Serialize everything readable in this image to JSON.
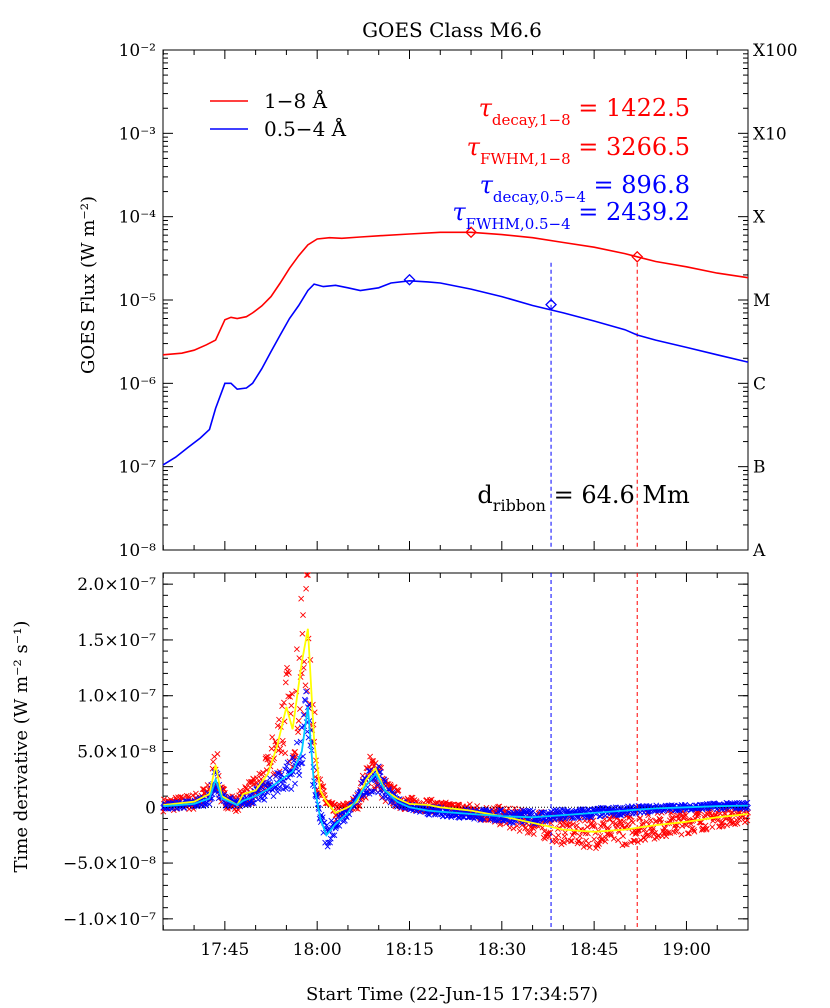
{
  "figure": {
    "title": "GOES Class M6.6",
    "xlabel": "Start Time (22-Jun-15 17:34:57)"
  },
  "chart_data": [
    {
      "type": "line",
      "panel": "top",
      "title": "GOES Class M6.6",
      "ylabel": "GOES Flux (W m⁻²)",
      "yscale": "log",
      "ylim": [
        1e-08,
        0.01
      ],
      "xlim": [
        "17:34:57",
        "19:10:00"
      ],
      "y_tick_labels": [
        "10⁻⁸",
        "10⁻⁷",
        "10⁻⁶",
        "10⁻⁵",
        "10⁻⁴",
        "10⁻³",
        "10⁻²"
      ],
      "class_labels": [
        "A",
        "B",
        "C",
        "M",
        "X",
        "X10",
        "X100"
      ],
      "legend": [
        {
          "label": "1−8 Å",
          "color": "#ff0000"
        },
        {
          "label": "0.5−4 Å",
          "color": "#0000ff"
        }
      ],
      "legend_position": "top-left",
      "annotations": [
        {
          "prefix": "τ",
          "sub": "decay,1−8",
          "value": "= 1422.5",
          "color": "#ff0000"
        },
        {
          "prefix": "τ",
          "sub": "FWHM,1−8",
          "value": "= 3266.5",
          "color": "#ff0000"
        },
        {
          "prefix": "τ",
          "sub": "decay,0.5−4",
          "value": "= 896.8",
          "color": "#0000ff"
        },
        {
          "prefix": "τ",
          "sub": "FWHM,0.5−4",
          "value": "= 2439.2",
          "color": "#0000ff"
        }
      ],
      "ribbon_label": {
        "prefix": "d",
        "sub": "ribbon",
        "value": "= 64.6 Mm"
      },
      "series": [
        {
          "name": "1−8 Å",
          "color": "#ff0000",
          "x": [
            "17:34:57",
            "17:38:00",
            "17:40:00",
            "17:42:00",
            "17:43:30",
            "17:45:00",
            "17:46:00",
            "17:47:00",
            "17:48:30",
            "17:49:30",
            "17:51:00",
            "17:52:30",
            "17:54:00",
            "17:55:30",
            "17:57:00",
            "17:58:30",
            "18:00:00",
            "18:02:00",
            "18:04:00",
            "18:07:00",
            "18:10:00",
            "18:15:00",
            "18:20:00",
            "18:25:00",
            "18:30:00",
            "18:35:00",
            "18:40:00",
            "18:45:00",
            "18:50:00",
            "18:52:00",
            "18:55:00",
            "19:00:00",
            "19:05:00",
            "19:10:00"
          ],
          "y": [
            2.2e-06,
            2.3e-06,
            2.5e-06,
            2.9e-06,
            3.3e-06,
            5.8e-06,
            6.2e-06,
            6e-06,
            6.3e-06,
            7e-06,
            8.5e-06,
            1.1e-05,
            1.6e-05,
            2.4e-05,
            3.4e-05,
            4.6e-05,
            5.4e-05,
            5.6e-05,
            5.5e-05,
            5.7e-05,
            5.9e-05,
            6.2e-05,
            6.5e-05,
            6.5e-05,
            6.1e-05,
            5.6e-05,
            4.9e-05,
            4.3e-05,
            3.6e-05,
            3.3e-05,
            2.9e-05,
            2.5e-05,
            2.1e-05,
            1.85e-05
          ]
        },
        {
          "name": "0.5−4 Å",
          "color": "#0000ff",
          "x": [
            "17:34:57",
            "17:37:00",
            "17:39:00",
            "17:41:00",
            "17:42:30",
            "17:43:30",
            "17:45:00",
            "17:46:00",
            "17:47:00",
            "17:48:30",
            "17:49:30",
            "17:51:00",
            "17:52:30",
            "17:54:00",
            "17:55:30",
            "17:57:00",
            "17:58:30",
            "17:59:30",
            "18:01:00",
            "18:03:00",
            "18:05:00",
            "18:07:00",
            "18:10:00",
            "18:12:00",
            "18:15:00",
            "18:18:00",
            "18:20:00",
            "18:25:00",
            "18:30:00",
            "18:35:00",
            "18:40:00",
            "18:45:00",
            "18:50:00",
            "18:52:00",
            "18:55:00",
            "19:00:00",
            "19:05:00",
            "19:10:00"
          ],
          "y": [
            1.05e-07,
            1.3e-07,
            1.7e-07,
            2.2e-07,
            2.8e-07,
            5e-07,
            1e-06,
            1e-06,
            8.5e-07,
            8.8e-07,
            1e-06,
            1.5e-06,
            2.4e-06,
            3.8e-06,
            6e-06,
            8.6e-06,
            1.3e-05,
            1.55e-05,
            1.45e-05,
            1.5e-05,
            1.4e-05,
            1.3e-05,
            1.4e-05,
            1.6e-05,
            1.7e-05,
            1.65e-05,
            1.6e-05,
            1.35e-05,
            1.1e-05,
            8.6e-06,
            7e-06,
            5.6e-06,
            4.4e-06,
            3.8e-06,
            3.3e-06,
            2.7e-06,
            2.2e-06,
            1.8e-06
          ]
        }
      ],
      "markers": [
        {
          "series": "0.5−4 Å",
          "x": "18:15:00",
          "y": 1.75e-05
        },
        {
          "series": "1−8 Å",
          "x": "18:25:00",
          "y": 6.5e-05
        },
        {
          "series": "0.5−4 Å",
          "x": "18:38:00",
          "y": 8.8e-06
        },
        {
          "series": "1−8 Å",
          "x": "18:52:00",
          "y": 3.3e-05
        }
      ],
      "vlines": [
        {
          "x": "18:38:00",
          "color": "#0000ff"
        },
        {
          "x": "18:52:00",
          "color": "#ff0000"
        }
      ]
    },
    {
      "type": "scatter",
      "panel": "bottom",
      "ylabel": "Time derivative (W m⁻² s⁻¹)",
      "xlabel": "Start Time (22-Jun-15 17:34:57)",
      "ylim": [
        -1.1e-07,
        2.1e-07
      ],
      "xlim": [
        "17:34:57",
        "19:10:00"
      ],
      "y_tick_labels": [
        {
          "value": 2e-07,
          "text": "2.0×10⁻⁷"
        },
        {
          "value": 1.5e-07,
          "text": "1.5×10⁻⁷"
        },
        {
          "value": 1e-07,
          "text": "1.0×10⁻⁷"
        },
        {
          "value": 5e-08,
          "text": "5.0×10⁻⁸"
        },
        {
          "value": 0,
          "text": "0"
        },
        {
          "value": -5e-08,
          "text": "−5.0×10⁻⁸"
        },
        {
          "value": -1e-07,
          "text": "−1.0×10⁻⁷"
        }
      ],
      "x_tick_labels": [
        "17:45",
        "18:00",
        "18:15",
        "18:30",
        "18:45",
        "19:00"
      ],
      "series": [
        {
          "name": "1−8 Å derivative (smoothed)",
          "color": "#ffff00",
          "x": [
            "17:35:00",
            "17:40:00",
            "17:42:30",
            "17:43:30",
            "17:44:30",
            "17:47:00",
            "17:48:00",
            "17:50:00",
            "17:52:00",
            "17:53:30",
            "17:55:00",
            "17:56:00",
            "17:57:30",
            "17:58:30",
            "17:59:30",
            "18:00:30",
            "18:01:30",
            "18:03:00",
            "18:05:00",
            "18:06:30",
            "18:08:00",
            "18:09:30",
            "18:11:00",
            "18:13:00",
            "18:15:00",
            "18:18:00",
            "18:20:00",
            "18:25:00",
            "18:30:00",
            "18:35:00",
            "18:40:00",
            "18:45:00",
            "18:50:00",
            "18:55:00",
            "19:00:00",
            "19:05:00",
            "19:10:00"
          ],
          "y": [
            2e-09,
            5e-09,
            1.2e-08,
            3.8e-08,
            1e-08,
            2e-09,
            1.2e-08,
            1.5e-08,
            3e-08,
            5.5e-08,
            9e-08,
            7e-08,
            1.3e-07,
            1.6e-07,
            6e-08,
            1.5e-08,
            5e-09,
            -5e-09,
            0,
            5e-09,
            2.5e-08,
            3.5e-08,
            1.5e-08,
            8e-09,
            3e-09,
            2e-09,
            0,
            -3e-09,
            -8e-09,
            -1.4e-08,
            -2e-08,
            -2.2e-08,
            -2e-08,
            -1.6e-08,
            -1.3e-08,
            -9e-09,
            -6e-09
          ]
        },
        {
          "name": "0.5−4 Å derivative (smoothed)",
          "color": "#00c8ff",
          "x": [
            "17:35:00",
            "17:40:00",
            "17:42:30",
            "17:43:30",
            "17:44:30",
            "17:47:00",
            "17:48:00",
            "17:50:00",
            "17:52:00",
            "17:53:30",
            "17:55:00",
            "17:56:00",
            "17:57:30",
            "17:58:30",
            "17:59:30",
            "18:00:30",
            "18:01:30",
            "18:03:00",
            "18:05:00",
            "18:06:30",
            "18:08:00",
            "18:09:30",
            "18:11:00",
            "18:13:00",
            "18:15:00",
            "18:18:00",
            "18:20:00",
            "18:25:00",
            "18:30:00",
            "18:35:00",
            "18:40:00",
            "18:45:00",
            "18:50:00",
            "18:55:00",
            "19:00:00",
            "19:05:00",
            "19:10:00"
          ],
          "y": [
            1e-09,
            3e-09,
            8e-09,
            2.5e-08,
            8e-09,
            2e-09,
            6e-09,
            1e-08,
            1.6e-08,
            2.2e-08,
            2.8e-08,
            3.2e-08,
            5e-08,
            9e-08,
            2e-08,
            -1e-08,
            -2.5e-08,
            -1.5e-08,
            -5e-09,
            8e-09,
            2e-08,
            3e-08,
            1.5e-08,
            5e-09,
            0,
            -3e-09,
            -4e-09,
            -6e-09,
            -8e-09,
            -9e-09,
            -7e-09,
            -5e-09,
            -3e-09,
            -1e-09,
            0,
            1e-09,
            1.5e-09
          ]
        },
        {
          "name": "1−8 Å derivative (raw)",
          "color": "#ff0000",
          "marker": "x"
        },
        {
          "name": "0.5−4 Å derivative (raw)",
          "color": "#0000ff",
          "marker": "x"
        }
      ],
      "zero_line": true,
      "vlines": [
        {
          "x": "18:38:00",
          "color": "#0000ff"
        },
        {
          "x": "18:52:00",
          "color": "#ff0000"
        }
      ]
    }
  ]
}
